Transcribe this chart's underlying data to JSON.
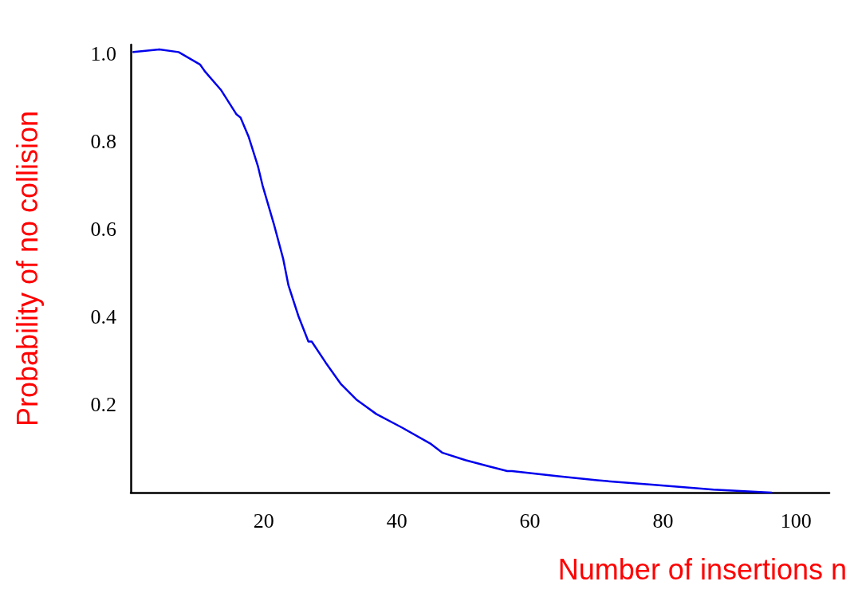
{
  "chart_data": {
    "type": "line",
    "xlabel": "Number of insertions n",
    "ylabel": "Probability of no collision",
    "xlim": [
      0,
      105
    ],
    "ylim": [
      0,
      1.02
    ],
    "xticks": [
      20,
      40,
      60,
      80,
      100
    ],
    "yticks": [
      0.2,
      0.4,
      0.6,
      0.8,
      {
        "value": 1,
        "label": "1.0"
      }
    ],
    "grid": false,
    "marker": "none",
    "line_style": "solid",
    "series": [
      {
        "color": "#0000ee",
        "x": [
          0.4,
          4.3,
          7.2,
          10.4,
          11.2,
          13.6,
          15.9,
          16.5,
          17.7,
          19.1,
          19.8,
          21.5,
          22.9,
          23.7,
          25.2,
          26.7,
          27.2,
          29.3,
          31.6,
          33.9,
          36.9,
          40.9,
          45.0,
          46.8,
          50.3,
          53.8,
          56.6,
          57.3,
          64.3,
          70.1,
          78.3,
          87.6,
          96.3
        ],
        "values": [
          1.003,
          1.009,
          1.003,
          0.975,
          0.958,
          0.916,
          0.861,
          0.854,
          0.811,
          0.744,
          0.7,
          0.612,
          0.533,
          0.472,
          0.402,
          0.344,
          0.344,
          0.296,
          0.247,
          0.212,
          0.179,
          0.147,
          0.112,
          0.091,
          0.074,
          0.06,
          0.049,
          0.049,
          0.037,
          0.028,
          0.018,
          0.007,
          0.0
        ]
      }
    ]
  }
}
